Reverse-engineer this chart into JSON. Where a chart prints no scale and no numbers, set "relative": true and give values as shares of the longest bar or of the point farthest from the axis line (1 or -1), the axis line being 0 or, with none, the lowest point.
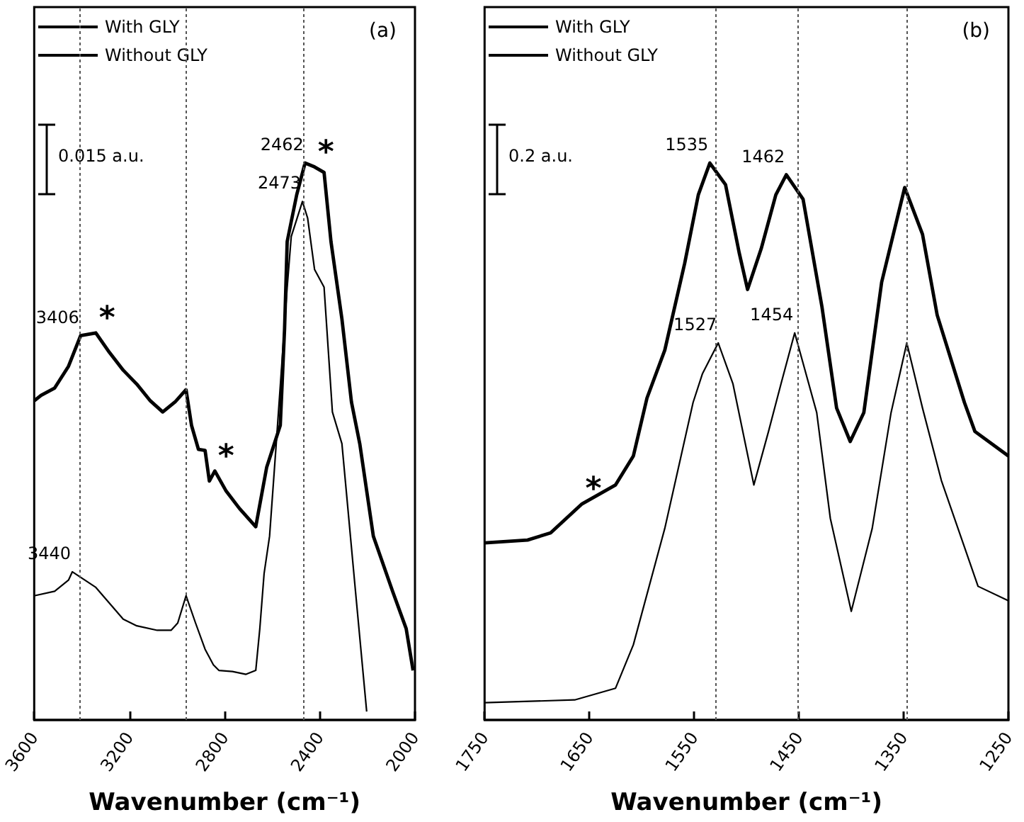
{
  "chart_data": [
    {
      "type": "line",
      "title": "(a)",
      "xlabel": "Wavenumber (cm⁻¹)",
      "relative": true,
      "xlim": [
        3600,
        2000
      ],
      "xticks": [
        3600,
        3200,
        2800,
        2400,
        2000
      ],
      "grid": false,
      "legend": "top left",
      "marker": "none",
      "series": [
        {
          "name": "With GLY",
          "color": "#000000",
          "x": [
            3600,
            3571,
            3514,
            3456,
            3405,
            3341,
            3284,
            3226,
            3169,
            3112,
            3060,
            3008,
            2962,
            2939,
            2910,
            2882,
            2864,
            2841,
            2795,
            2738,
            2669,
            2623,
            2566,
            2548,
            2537,
            2497,
            2462,
            2422,
            2382,
            2353,
            2307,
            2267,
            2232,
            2175,
            2094,
            2037,
            2008
          ],
          "values": [
            0.573,
            0.583,
            0.596,
            0.635,
            0.69,
            0.695,
            0.66,
            0.628,
            0.603,
            0.573,
            0.553,
            0.571,
            0.593,
            0.529,
            0.486,
            0.484,
            0.429,
            0.447,
            0.412,
            0.38,
            0.347,
            0.454,
            0.529,
            0.702,
            0.859,
            0.943,
            1,
            0.993,
            0.983,
            0.859,
            0.72,
            0.571,
            0.496,
            0.33,
            0.231,
            0.164,
            0.089
          ]
        },
        {
          "name": "Without GLY",
          "color": "#000000",
          "x": [
            3600,
            3514,
            3456,
            3440,
            3341,
            3226,
            3169,
            3083,
            3025,
            2997,
            2962,
            2922,
            2882,
            2847,
            2824,
            2767,
            2710,
            2669,
            2652,
            2634,
            2611,
            2583,
            2537,
            2520,
            2473,
            2451,
            2422,
            2382,
            2347,
            2307,
            2250,
            2203
          ],
          "values": [
            0.223,
            0.231,
            0.251,
            0.266,
            0.238,
            0.181,
            0.169,
            0.161,
            0.161,
            0.174,
            0.223,
            0.174,
            0.127,
            0.099,
            0.089,
            0.087,
            0.082,
            0.089,
            0.164,
            0.263,
            0.33,
            0.496,
            0.777,
            0.868,
            0.931,
            0.901,
            0.809,
            0.777,
            0.553,
            0.496,
            0.231,
            0.015
          ]
        }
      ],
      "ref_lines": [
        {
          "axis": "x",
          "value": 3406,
          "color": "#555555",
          "line_style": "dotted"
        },
        {
          "axis": "x",
          "value": 2962,
          "color": "#555555",
          "line_style": "dotted"
        },
        {
          "axis": "x",
          "value": 2468,
          "color": "#555555",
          "line_style": "dotted"
        }
      ],
      "annotations": [
        "0.015 a.u.",
        {
          "text": "3406",
          "x": 3405,
          "y": 0.69
        },
        {
          "text": "*",
          "x": 3341,
          "y": 0.695
        },
        {
          "text": "3440",
          "x": 3440,
          "y": 0.266
        },
        {
          "text": "*",
          "x": 2841,
          "y": 0.447
        },
        {
          "text": "2462",
          "x": 2462,
          "y": 1
        },
        {
          "text": "*",
          "x": 2422,
          "y": 0.993
        },
        {
          "text": "2473",
          "x": 2473,
          "y": 0.931
        }
      ]
    },
    {
      "type": "line",
      "title": "(b)",
      "xlabel": "Wavenumber (cm⁻¹)",
      "relative": true,
      "xlim": [
        1750,
        1250
      ],
      "xticks": [
        1750,
        1650,
        1550,
        1450,
        1350,
        1250
      ],
      "grid": false,
      "legend": "top left",
      "marker": "none",
      "series": [
        {
          "name": "With GLY",
          "color": "#000000",
          "x": [
            1750,
            1709,
            1687,
            1657,
            1625,
            1608,
            1595,
            1578,
            1559,
            1546,
            1535,
            1520,
            1507,
            1499,
            1486,
            1472,
            1462,
            1446,
            1428,
            1414,
            1401,
            1388,
            1371,
            1349,
            1332,
            1318,
            1292,
            1282,
            1250
          ],
          "values": [
            0.318,
            0.323,
            0.336,
            0.388,
            0.422,
            0.474,
            0.578,
            0.664,
            0.82,
            0.943,
            1,
            0.961,
            0.839,
            0.773,
            0.846,
            0.943,
            0.979,
            0.935,
            0.742,
            0.56,
            0.5,
            0.552,
            0.786,
            0.956,
            0.872,
            0.727,
            0.57,
            0.518,
            0.474
          ]
        },
        {
          "name": "Without GLY",
          "color": "#000000",
          "x": [
            1750,
            1664,
            1625,
            1608,
            1578,
            1551,
            1542,
            1527,
            1513,
            1493,
            1479,
            1467,
            1454,
            1433,
            1420,
            1400,
            1380,
            1362,
            1347,
            1332,
            1314,
            1279,
            1250
          ],
          "values": [
            0.031,
            0.036,
            0.057,
            0.135,
            0.344,
            0.57,
            0.622,
            0.677,
            0.604,
            0.422,
            0.518,
            0.604,
            0.695,
            0.552,
            0.362,
            0.195,
            0.344,
            0.552,
            0.677,
            0.56,
            0.43,
            0.24,
            0.214
          ]
        }
      ],
      "ref_lines": [
        {
          "axis": "x",
          "value": 1529,
          "color": "#555555",
          "line_style": "dotted"
        },
        {
          "axis": "x",
          "value": 1451,
          "color": "#555555",
          "line_style": "dotted"
        },
        {
          "axis": "x",
          "value": 1347,
          "color": "#555555",
          "line_style": "dotted"
        }
      ],
      "annotations": [
        "0.2 a.u.",
        {
          "text": "1535",
          "x": 1535,
          "y": 1
        },
        {
          "text": "1462",
          "x": 1462,
          "y": 0.979
        },
        {
          "text": "1527",
          "x": 1527,
          "y": 0.677
        },
        {
          "text": "1454",
          "x": 1454,
          "y": 0.695
        },
        {
          "text": "*",
          "x": 1657,
          "y": 0.388
        }
      ]
    }
  ]
}
